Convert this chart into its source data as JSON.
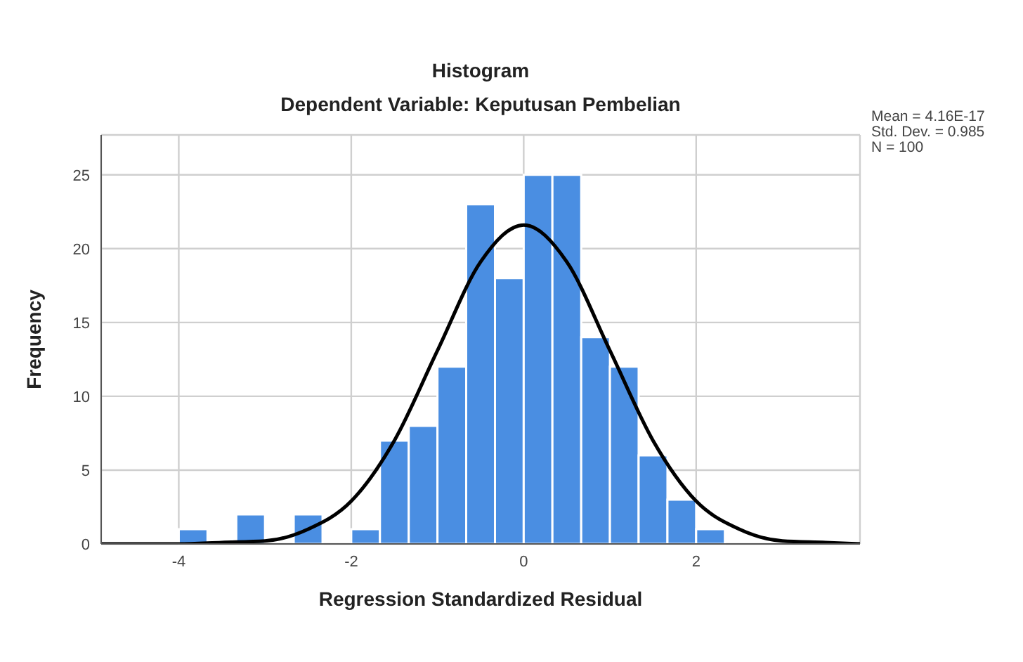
{
  "chart_data": {
    "type": "histogram",
    "title": "Histogram",
    "subtitle": "Dependent Variable: Keputusan Pembelian",
    "xlabel": "Regression Standardized Residual",
    "ylabel": "Frequency",
    "bins": [
      -4,
      -3.667,
      -3.333,
      -3,
      -2.667,
      -2.333,
      -2,
      -1.667,
      -1.333,
      -1,
      -0.667,
      -0.333,
      0,
      0.333,
      0.667,
      1,
      1.333,
      1.667,
      2,
      2.333
    ],
    "values": [
      1,
      0,
      2,
      0,
      2,
      0,
      1,
      7,
      8,
      12,
      23,
      18,
      25,
      25,
      14,
      12,
      6,
      3,
      1
    ],
    "color": "#4a8ee2",
    "series": [
      {
        "type": "line",
        "color": "#000000",
        "x": [
          -4.9,
          -4.5,
          -4,
          -3.5,
          -3,
          -2.5,
          -2,
          -1.5,
          -1,
          -0.5,
          0,
          0.5,
          1,
          1.5,
          2,
          2.5,
          3,
          3.5,
          3.9
        ],
        "values": [
          0,
          0,
          0,
          0.1,
          0.2,
          1,
          2.9,
          7,
          13.1,
          19.1,
          21.6,
          19.1,
          13.1,
          7,
          2.9,
          1,
          0.2,
          0.1,
          0
        ]
      }
    ],
    "xlim": [
      -4.9,
      3.9
    ],
    "xticks": [
      -4,
      -2,
      0,
      2
    ],
    "ylim": [
      0,
      27.7
    ],
    "yticks": [
      0,
      5,
      10,
      15,
      20,
      25
    ],
    "grid": true,
    "marker": "none",
    "line_style": "solid",
    "annotations": [
      "Mean = 4.16E-17",
      "Std. Dev. = 0.985",
      "N = 100"
    ]
  }
}
